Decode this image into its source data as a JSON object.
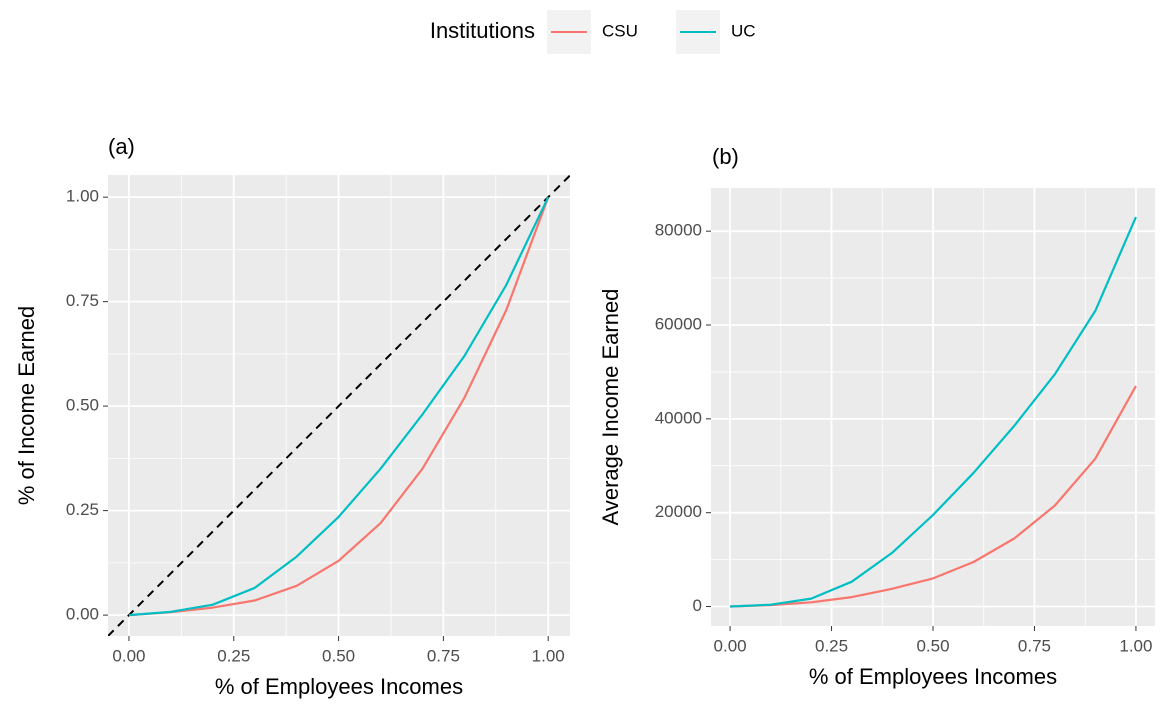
{
  "legend": {
    "title": "Institutions"
  },
  "chart_data": [
    {
      "type": "line",
      "title": "(a)",
      "x_label": "% of Employees Incomes",
      "y_label": "% of Income Earned",
      "x": [
        0,
        0.1,
        0.2,
        0.3,
        0.4,
        0.5,
        0.6,
        0.7,
        0.8,
        0.9,
        1
      ],
      "series": [
        {
          "name": "CSU",
          "color": "#f8766d",
          "values": [
            0,
            0.007,
            0.018,
            0.035,
            0.07,
            0.13,
            0.22,
            0.35,
            0.52,
            0.73,
            1
          ]
        },
        {
          "name": "UC",
          "color": "#00bfc4",
          "values": [
            0,
            0.008,
            0.025,
            0.065,
            0.14,
            0.235,
            0.35,
            0.48,
            0.62,
            0.79,
            1
          ]
        }
      ],
      "xlim": [
        -0.05,
        1.052
      ],
      "ylim": [
        -0.05,
        1.053
      ],
      "xticks": [
        {
          "value": 0,
          "label": "0.00"
        },
        {
          "value": 0.25,
          "label": "0.25"
        },
        {
          "value": 0.5,
          "label": "0.50"
        },
        {
          "value": 0.75,
          "label": "0.75"
        },
        {
          "value": 1,
          "label": "1.00"
        }
      ],
      "yticks": [
        {
          "value": 0,
          "label": "0.00"
        },
        {
          "value": 0.25,
          "label": "0.25"
        },
        {
          "value": 0.5,
          "label": "0.50"
        },
        {
          "value": 0.75,
          "label": "0.75"
        },
        {
          "value": 1,
          "label": "1.00"
        }
      ],
      "grid": true,
      "diagonal": true
    },
    {
      "type": "line",
      "title": "(b)",
      "x_label": "% of Employees Incomes",
      "y_label": "Average Income Earned",
      "x": [
        0,
        0.1,
        0.2,
        0.3,
        0.4,
        0.5,
        0.6,
        0.7,
        0.8,
        0.9,
        1
      ],
      "series": [
        {
          "name": "CSU",
          "color": "#f8766d",
          "values": [
            0,
            300,
            900,
            2000,
            3800,
            6000,
            9500,
            14500,
            21500,
            31500,
            47000
          ]
        },
        {
          "name": "UC",
          "color": "#00bfc4",
          "values": [
            0,
            400,
            1700,
            5300,
            11500,
            19500,
            28500,
            38500,
            49500,
            63000,
            83000
          ]
        }
      ],
      "xlim": [
        -0.047,
        1.047
      ],
      "ylim": [
        -4150,
        89200
      ],
      "xticks": [
        {
          "value": 0,
          "label": "0.00"
        },
        {
          "value": 0.25,
          "label": "0.25"
        },
        {
          "value": 0.5,
          "label": "0.50"
        },
        {
          "value": 0.75,
          "label": "0.75"
        },
        {
          "value": 1,
          "label": "1.00"
        }
      ],
      "yticks": [
        0,
        20000,
        40000,
        60000,
        80000
      ],
      "grid": true,
      "diagonal": false
    }
  ]
}
